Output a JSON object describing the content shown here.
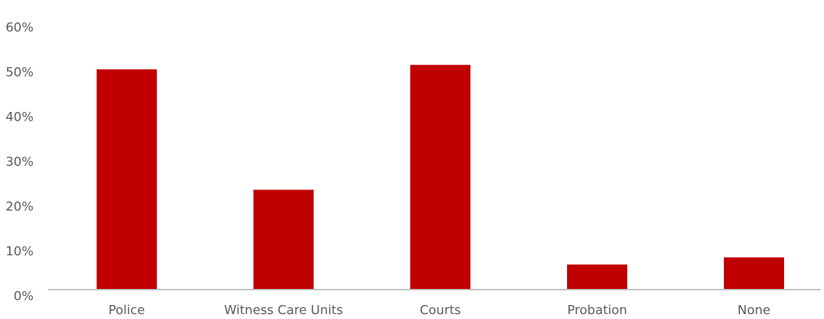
{
  "chart_data": {
    "type": "bar",
    "categories": [
      "Police",
      "Witness Care Units",
      "Courts",
      "Probation",
      "None"
    ],
    "values": [
      49.2,
      22.3,
      50.2,
      5.6,
      7.2
    ],
    "color": "#c00000",
    "ylim": [
      0,
      60
    ],
    "yticks": [
      {
        "value": 0,
        "label": "0%"
      },
      {
        "value": 10,
        "label": "10%"
      },
      {
        "value": 20,
        "label": "20%"
      },
      {
        "value": 30,
        "label": "30%"
      },
      {
        "value": 40,
        "label": "40%"
      },
      {
        "value": 50,
        "label": "50%"
      },
      {
        "value": 60,
        "label": "60%"
      }
    ],
    "grid": false
  }
}
